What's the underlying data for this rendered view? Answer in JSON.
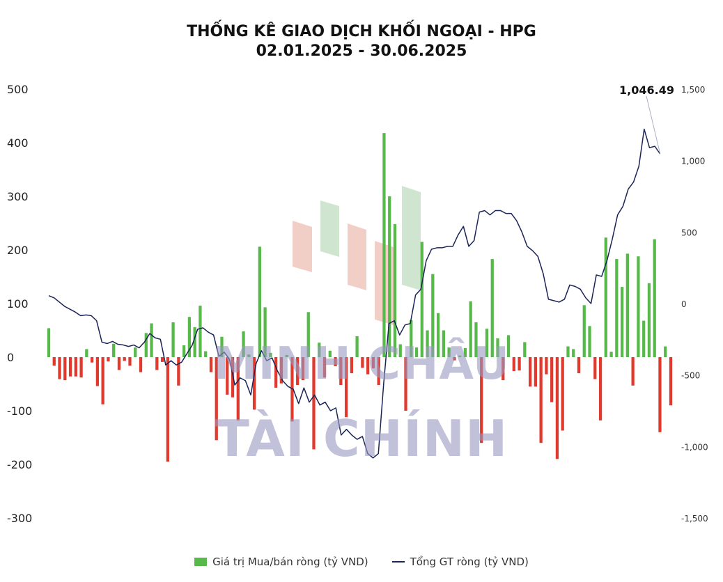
{
  "title_line1": "THỐNG KÊ GIAO DỊCH KHỐI NGOẠI - HPG",
  "title_line2": "02.01.2025 - 30.06.2025",
  "watermark": {
    "line1": "MINH CHÂU",
    "line2": "TÀI CHÍNH"
  },
  "legend": {
    "bar_label": "Giá trị Mua/bán ròng (tỷ VND)",
    "line_label": "Tổng GT ròng (tỷ VND)"
  },
  "colors": {
    "positive_bar": "#56b94a",
    "negative_bar": "#e03a2f",
    "line": "#1a2456"
  },
  "chart_data": {
    "type": "bar+line",
    "x_start": "02.01.2025",
    "x_end": "30.06.2025",
    "left_axis": {
      "ticks": [
        "500",
        "400",
        "300",
        "200",
        "100",
        "0",
        "-100",
        "-200",
        "-300"
      ],
      "ylim": [
        -300,
        500
      ]
    },
    "right_axis": {
      "ticks": [
        "1,500",
        "1,000",
        "500",
        "0",
        "-500",
        "-1,000",
        "-1,500"
      ],
      "ylim": [
        -1500,
        1500
      ]
    },
    "annotation": "1,046.49",
    "series": [
      {
        "name": "Giá trị Mua/bán ròng (tỷ VND)",
        "type": "bar",
        "axis": "left",
        "values": [
          54,
          -16,
          -41,
          -43,
          -36,
          -36,
          -38,
          15,
          -10,
          -54,
          -88,
          -8,
          25,
          -24,
          -7,
          -16,
          18,
          -28,
          45,
          63,
          -24,
          -9,
          -195,
          65,
          -53,
          22,
          75,
          56,
          96,
          11,
          -28,
          -155,
          38,
          -70,
          -75,
          -118,
          48,
          5,
          -98,
          206,
          93,
          8,
          -57,
          -49,
          4,
          -120,
          -52,
          -43,
          84,
          -172,
          27,
          -38,
          12,
          -17,
          -52,
          -112,
          -30,
          39,
          -20,
          -32,
          -21,
          -52,
          418,
          300,
          248,
          24,
          -100,
          69,
          18,
          215,
          50,
          155,
          82,
          50,
          18,
          -6,
          3,
          17,
          104,
          65,
          -160,
          53,
          183,
          35,
          -43,
          41,
          -26,
          -25,
          28,
          -55,
          -55,
          -160,
          -32,
          -84,
          -190,
          -137,
          20,
          15,
          -30,
          97,
          58,
          -41,
          -118,
          223,
          10,
          183,
          131,
          193,
          -53,
          188,
          68,
          138,
          220,
          -140,
          20,
          -90
        ]
      },
      {
        "name": "Tổng GT ròng (tỷ VND)",
        "type": "line",
        "axis": "right",
        "x_range": [
          0,
          117
        ],
        "values": [
          [
            0,
            55
          ],
          [
            1,
            40
          ],
          [
            2,
            10
          ],
          [
            3,
            -20
          ],
          [
            4,
            -40
          ],
          [
            5,
            -60
          ],
          [
            6,
            -85
          ],
          [
            7,
            -80
          ],
          [
            8,
            -85
          ],
          [
            9,
            -120
          ],
          [
            10,
            -270
          ],
          [
            11,
            -280
          ],
          [
            12,
            -265
          ],
          [
            13,
            -285
          ],
          [
            14,
            -290
          ],
          [
            15,
            -300
          ],
          [
            16,
            -290
          ],
          [
            17,
            -310
          ],
          [
            18,
            -270
          ],
          [
            19,
            -210
          ],
          [
            20,
            -240
          ],
          [
            21,
            -250
          ],
          [
            22,
            -430
          ],
          [
            23,
            -400
          ],
          [
            24,
            -430
          ],
          [
            25,
            -410
          ],
          [
            26,
            -350
          ],
          [
            27,
            -290
          ],
          [
            28,
            -180
          ],
          [
            29,
            -170
          ],
          [
            30,
            -200
          ],
          [
            31,
            -220
          ],
          [
            32,
            -370
          ],
          [
            33,
            -340
          ],
          [
            34,
            -390
          ],
          [
            35,
            -570
          ],
          [
            36,
            -520
          ],
          [
            37,
            -540
          ],
          [
            38,
            -640
          ],
          [
            39,
            -420
          ],
          [
            40,
            -330
          ],
          [
            41,
            -400
          ],
          [
            42,
            -380
          ],
          [
            43,
            -470
          ],
          [
            44,
            -540
          ],
          [
            45,
            -580
          ],
          [
            46,
            -600
          ],
          [
            47,
            -700
          ],
          [
            48,
            -590
          ],
          [
            49,
            -690
          ],
          [
            50,
            -640
          ],
          [
            51,
            -710
          ],
          [
            52,
            -690
          ],
          [
            53,
            -750
          ],
          [
            54,
            -730
          ],
          [
            55,
            -920
          ],
          [
            56,
            -880
          ],
          [
            57,
            -920
          ],
          [
            58,
            -950
          ],
          [
            59,
            -930
          ],
          [
            60,
            -1050
          ],
          [
            61,
            -1080
          ],
          [
            62,
            -1050
          ],
          [
            63,
            -560
          ],
          [
            64,
            -140
          ],
          [
            65,
            -120
          ],
          [
            66,
            -220
          ],
          [
            67,
            -150
          ],
          [
            68,
            -140
          ],
          [
            69,
            60
          ],
          [
            70,
            100
          ],
          [
            71,
            300
          ],
          [
            72,
            380
          ],
          [
            73,
            390
          ],
          [
            74,
            390
          ],
          [
            75,
            400
          ],
          [
            76,
            400
          ],
          [
            77,
            480
          ],
          [
            78,
            540
          ],
          [
            79,
            400
          ],
          [
            80,
            440
          ],
          [
            81,
            640
          ],
          [
            82,
            650
          ],
          [
            83,
            620
          ],
          [
            84,
            650
          ],
          [
            85,
            650
          ],
          [
            86,
            630
          ],
          [
            87,
            630
          ],
          [
            88,
            580
          ],
          [
            89,
            500
          ],
          [
            90,
            400
          ],
          [
            91,
            370
          ],
          [
            92,
            330
          ],
          [
            93,
            210
          ],
          [
            94,
            30
          ],
          [
            95,
            20
          ],
          [
            96,
            10
          ],
          [
            97,
            30
          ],
          [
            98,
            130
          ],
          [
            99,
            120
          ],
          [
            100,
            100
          ],
          [
            101,
            40
          ],
          [
            102,
            0
          ],
          [
            103,
            200
          ],
          [
            104,
            190
          ],
          [
            105,
            300
          ],
          [
            106,
            450
          ],
          [
            107,
            620
          ],
          [
            108,
            680
          ],
          [
            109,
            800
          ],
          [
            110,
            850
          ],
          [
            111,
            960
          ],
          [
            112,
            1220
          ],
          [
            113,
            1090
          ],
          [
            114,
            1100
          ],
          [
            115,
            1046.49
          ]
        ]
      }
    ],
    "grid": false,
    "legend_position": "bottom"
  }
}
